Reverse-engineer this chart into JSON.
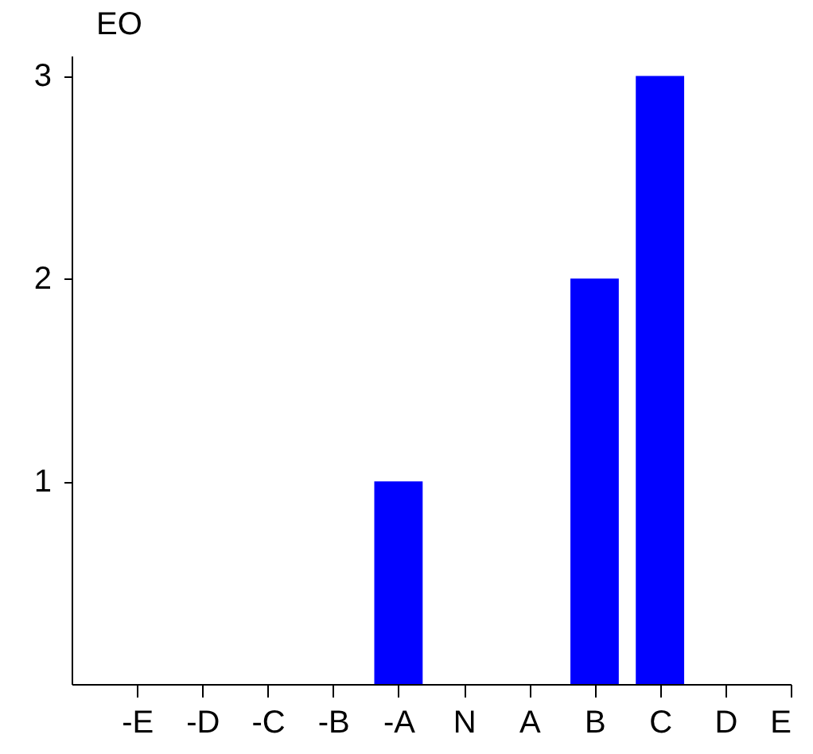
{
  "chart_data": {
    "type": "bar",
    "ylabel": "EO",
    "categories": [
      "-E",
      "-D",
      "-C",
      "-B",
      "-A",
      "N",
      "A",
      "B",
      "C",
      "D",
      "E"
    ],
    "values": [
      0,
      0,
      0,
      0,
      1,
      0,
      0,
      2,
      3,
      0,
      0
    ],
    "color": "#0000ff",
    "ylim": [
      0,
      3.1
    ],
    "yticks": [
      1,
      2,
      3
    ],
    "grid": false
  }
}
